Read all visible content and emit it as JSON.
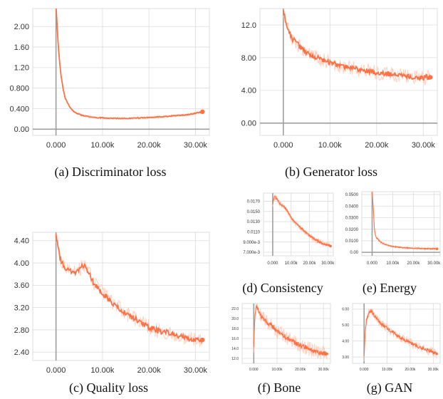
{
  "colors": {
    "line": "#ff7043",
    "line_faint": "#ffc6b0",
    "grid": "#dcdcdc",
    "axis": "#9e9e9e"
  },
  "chart_data": [
    {
      "id": "a",
      "type": "line",
      "caption": "(a) Discriminator loss",
      "x_ticks": [
        "0.000",
        "10.00k",
        "20.00k",
        "30.00k"
      ],
      "y_ticks": [
        "0.00",
        "0.400",
        "0.800",
        "1.20",
        "1.60",
        "2.00"
      ],
      "xlim": [
        -5000,
        33000
      ],
      "ylim": [
        -0.12,
        2.35
      ],
      "grid": true,
      "series": [
        {
          "x": [
            0,
            500,
            1000,
            1500,
            2000,
            3000,
            4000,
            5000,
            6000,
            8000,
            10000,
            13000,
            16000,
            20000,
            24000,
            28000,
            30000,
            31500
          ],
          "y": [
            2.4,
            1.6,
            1.1,
            0.8,
            0.6,
            0.42,
            0.33,
            0.29,
            0.26,
            0.23,
            0.22,
            0.21,
            0.21,
            0.23,
            0.25,
            0.28,
            0.31,
            0.34
          ]
        }
      ]
    },
    {
      "id": "b",
      "type": "line",
      "caption": "(b) Generator loss",
      "x_ticks": [
        "0.000",
        "10.00k",
        "20.00k",
        "30.00k"
      ],
      "y_ticks": [
        "0.00",
        "4.00",
        "8.00",
        "12.0"
      ],
      "xlim": [
        -5000,
        33000
      ],
      "ylim": [
        -1.5,
        14.0
      ],
      "grid": true,
      "series": [
        {
          "x": [
            0,
            500,
            1000,
            2000,
            3000,
            4000,
            6000,
            8000,
            10000,
            13000,
            16000,
            20000,
            24000,
            28000,
            31500
          ],
          "y": [
            14.0,
            12.5,
            11.5,
            10.2,
            9.7,
            9.0,
            8.3,
            7.8,
            7.4,
            6.9,
            6.6,
            6.2,
            5.9,
            5.6,
            5.6
          ]
        }
      ]
    },
    {
      "id": "c",
      "type": "line",
      "caption": "(c) Quality loss",
      "x_ticks": [
        "0.000",
        "10.00k",
        "20.00k",
        "30.00k"
      ],
      "y_ticks": [
        "2.40",
        "2.80",
        "3.20",
        "3.60",
        "4.00",
        "4.40"
      ],
      "xlim": [
        -5000,
        33000
      ],
      "ylim": [
        2.25,
        4.55
      ],
      "grid": true,
      "series": [
        {
          "x": [
            0,
            1000,
            2000,
            3000,
            4000,
            5000,
            6000,
            7000,
            8000,
            9000,
            10000,
            12000,
            14000,
            16000,
            18000,
            20000,
            22000,
            24000,
            26000,
            28000,
            30000,
            31500
          ],
          "y": [
            4.5,
            4.05,
            3.9,
            3.85,
            3.82,
            3.9,
            3.95,
            3.85,
            3.65,
            3.55,
            3.45,
            3.3,
            3.15,
            3.05,
            2.95,
            2.85,
            2.78,
            2.75,
            2.7,
            2.66,
            2.62,
            2.62
          ]
        }
      ]
    },
    {
      "id": "d",
      "type": "line",
      "caption": "(d) Consistency",
      "x_ticks": [
        "0.000",
        "10.00k",
        "20.00k",
        "30.00k"
      ],
      "y_ticks": [
        "7.000e-3",
        "9.000e-3",
        "0.0110",
        "0.0130",
        "0.0150",
        "0.0170"
      ],
      "xlim": [
        -5000,
        33000
      ],
      "ylim": [
        0.0063,
        0.0186
      ],
      "grid": true,
      "series": [
        {
          "x": [
            0,
            1000,
            2000,
            4000,
            6000,
            8000,
            10000,
            13000,
            16000,
            20000,
            24000,
            28000,
            31500
          ],
          "y": [
            0.0165,
            0.018,
            0.0175,
            0.0165,
            0.016,
            0.015,
            0.0138,
            0.0125,
            0.0115,
            0.0103,
            0.0093,
            0.0086,
            0.0082
          ]
        }
      ]
    },
    {
      "id": "e",
      "type": "line",
      "caption": "(e) Energy",
      "x_ticks": [
        "0.000",
        "10.00k",
        "20.00k",
        "30.00k"
      ],
      "y_ticks": [
        "0.00",
        "0.0100",
        "0.0200",
        "0.0300",
        "0.0400",
        "0.0500"
      ],
      "xlim": [
        -5000,
        33000
      ],
      "ylim": [
        -0.003,
        0.0525
      ],
      "grid": true,
      "series": [
        {
          "x": [
            0,
            300,
            700,
            1000,
            1500,
            2000,
            3000,
            4000,
            6000,
            8000,
            10000,
            14000,
            20000,
            26000,
            31500
          ],
          "y": [
            0.052,
            0.045,
            0.035,
            0.022,
            0.016,
            0.013,
            0.011,
            0.009,
            0.007,
            0.006,
            0.005,
            0.0042,
            0.0035,
            0.0032,
            0.003
          ]
        }
      ]
    },
    {
      "id": "f",
      "type": "line",
      "caption": "(f) Bone",
      "x_ticks": [
        "0.000",
        "10.00k",
        "20.00k",
        "30.00k"
      ],
      "y_ticks": [
        "12.0",
        "14.0",
        "16.0",
        "18.0",
        "20.0",
        "22.0"
      ],
      "xlim": [
        -5000,
        33000
      ],
      "ylim": [
        11.0,
        23.0
      ],
      "grid": true,
      "series": [
        {
          "x": [
            0,
            500,
            1000,
            2000,
            3000,
            4000,
            6000,
            8000,
            10000,
            13000,
            16000,
            20000,
            24000,
            28000,
            31500
          ],
          "y": [
            14.5,
            21.0,
            22.5,
            21.5,
            20.5,
            20.0,
            19.2,
            18.4,
            17.5,
            16.5,
            15.6,
            14.6,
            13.8,
            13.2,
            12.9
          ]
        }
      ]
    },
    {
      "id": "g",
      "type": "line",
      "caption": "(g) GAN",
      "x_ticks": [
        "0.000",
        "10.00k",
        "20.00k",
        "30.00k"
      ],
      "y_ticks": [
        "3.00",
        "4.00",
        "5.00",
        "6.00"
      ],
      "xlim": [
        -5000,
        33000
      ],
      "ylim": [
        2.6,
        6.35
      ],
      "grid": true,
      "series": [
        {
          "x": [
            0,
            500,
            1000,
            2000,
            3000,
            4000,
            6000,
            8000,
            10000,
            13000,
            16000,
            20000,
            24000,
            28000,
            31500
          ],
          "y": [
            3.0,
            4.6,
            5.3,
            5.7,
            5.9,
            5.7,
            5.3,
            5.0,
            4.8,
            4.5,
            4.2,
            3.9,
            3.6,
            3.4,
            3.2
          ]
        }
      ]
    }
  ]
}
